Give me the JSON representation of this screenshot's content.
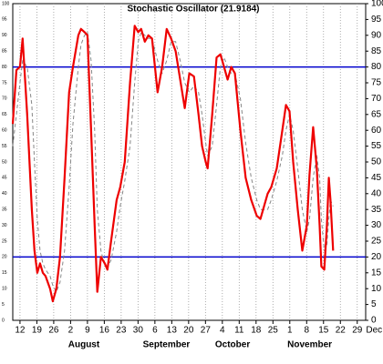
{
  "chart_data": {
    "type": "line",
    "title": "Stochastic Oscillator (21.9184)",
    "xlim": [
      -3,
      143.5
    ],
    "xticks": [
      {
        "value": 0,
        "label": "12"
      },
      {
        "value": 7,
        "label": "19"
      },
      {
        "value": 14,
        "label": "26"
      },
      {
        "value": 21,
        "label": "2"
      },
      {
        "value": 28,
        "label": "9"
      },
      {
        "value": 35,
        "label": "16"
      },
      {
        "value": 42,
        "label": "23"
      },
      {
        "value": 49,
        "label": "30"
      },
      {
        "value": 56,
        "label": "6"
      },
      {
        "value": 63,
        "label": "13"
      },
      {
        "value": 70,
        "label": "20"
      },
      {
        "value": 77,
        "label": "27"
      },
      {
        "value": 84,
        "label": "4"
      },
      {
        "value": 91,
        "label": "11"
      },
      {
        "value": 98,
        "label": "18"
      },
      {
        "value": 105,
        "label": "25"
      },
      {
        "value": 112,
        "label": "1"
      },
      {
        "value": 119,
        "label": "8"
      },
      {
        "value": 126,
        "label": "15"
      },
      {
        "value": 133,
        "label": "22"
      },
      {
        "value": 140,
        "label": "29"
      },
      {
        "value": 147,
        "label": "Dec"
      }
    ],
    "month_labels": [
      {
        "value": 20,
        "label": "August"
      },
      {
        "value": 51,
        "label": "September"
      },
      {
        "value": 81,
        "label": "October"
      },
      {
        "value": 111,
        "label": "November"
      }
    ],
    "ylim": [
      0,
      100
    ],
    "yticks": [
      0,
      5,
      10,
      15,
      20,
      25,
      30,
      35,
      40,
      45,
      50,
      55,
      60,
      65,
      70,
      75,
      80,
      85,
      90,
      95,
      100
    ],
    "reference_lines": [
      80,
      20
    ],
    "reference_color": "#0000cc",
    "x": [
      -3.0,
      -1.5,
      0,
      1.1,
      3.0,
      4.9,
      6.0,
      7.2,
      8.3,
      9.5,
      10.6,
      12.5,
      13.6,
      15.1,
      16.6,
      18.5,
      20.4,
      22.0,
      24.2,
      25.3,
      26.8,
      28.0,
      29.5,
      31.0,
      32.1,
      33.6,
      35.2,
      36.3,
      37.8,
      40.1,
      41.6,
      43.5,
      45.7,
      47.6,
      49.1,
      50.3,
      51.8,
      53.3,
      54.8,
      57.1,
      59.0,
      60.9,
      62.7,
      64.6,
      66.5,
      68.4,
      70.3,
      72.2,
      74.1,
      75.6,
      77.1,
      77.9,
      79.8,
      81.6,
      83.2,
      84.7,
      86.2,
      87.7,
      89.2,
      91.5,
      93.7,
      96.0,
      98.3,
      99.8,
      102.8,
      104.3,
      106.6,
      108.9,
      110.4,
      111.9,
      113.4,
      115.3,
      117.2,
      119.1,
      120.2,
      121.7,
      123.2,
      124.4,
      125.1,
      126.3,
      127.4,
      128.2,
      128.9,
      130.0
    ],
    "series": [
      {
        "color": "#ee0000",
        "dash": false,
        "values": [
          62,
          79,
          80,
          89,
          65,
          35,
          22,
          15,
          18,
          15,
          14,
          10,
          6,
          10,
          20,
          45,
          72,
          80,
          90,
          92,
          91,
          90,
          60,
          30,
          9,
          20,
          18,
          16,
          25,
          38,
          42,
          50,
          75,
          93,
          91,
          92,
          88,
          90,
          89,
          72,
          80,
          92,
          89,
          85,
          76,
          67,
          78,
          77,
          65,
          55,
          50,
          48,
          65,
          83,
          84,
          80,
          76,
          80,
          78,
          60,
          45,
          38,
          33,
          32,
          40,
          42,
          48,
          60,
          68,
          66,
          50,
          35,
          22,
          30,
          46,
          61,
          48,
          30,
          17,
          16,
          30,
          45,
          38,
          22
        ]
      },
      {
        "color": "#888888",
        "dash": true,
        "values": [
          55,
          65,
          75,
          82,
          80,
          68,
          50,
          32,
          22,
          18,
          16,
          14,
          11,
          9,
          12,
          22,
          42,
          62,
          80,
          87,
          90,
          91,
          82,
          60,
          35,
          22,
          17,
          17,
          19,
          28,
          36,
          44,
          55,
          75,
          88,
          91,
          90,
          89,
          89,
          82,
          78,
          82,
          88,
          88,
          82,
          75,
          72,
          74,
          72,
          65,
          56,
          52,
          55,
          68,
          80,
          83,
          80,
          78,
          78,
          70,
          56,
          45,
          38,
          35,
          35,
          38,
          44,
          52,
          60,
          65,
          60,
          48,
          35,
          28,
          32,
          45,
          52,
          45,
          32,
          22,
          24,
          32,
          38,
          36
        ]
      }
    ]
  }
}
